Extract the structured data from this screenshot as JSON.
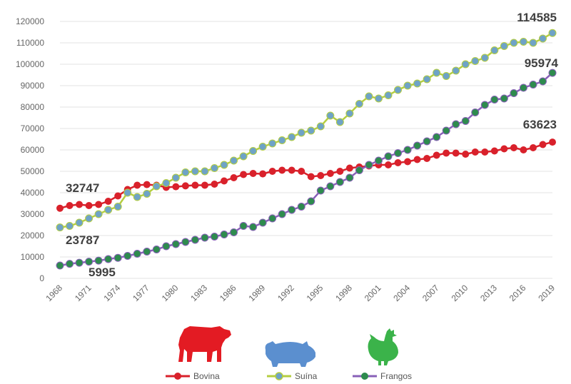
{
  "chart_data": {
    "type": "line",
    "title": "",
    "xlabel": "",
    "ylabel": "",
    "ylim": [
      0,
      120000
    ],
    "yticks": [
      "0",
      "10000",
      "20000",
      "30000",
      "40000",
      "50000",
      "60000",
      "70000",
      "80000",
      "90000",
      "100000",
      "110000",
      "120000"
    ],
    "x": [
      1968,
      1969,
      1970,
      1971,
      1972,
      1973,
      1974,
      1975,
      1976,
      1977,
      1978,
      1979,
      1980,
      1981,
      1982,
      1983,
      1984,
      1985,
      1986,
      1987,
      1988,
      1989,
      1990,
      1991,
      1992,
      1993,
      1994,
      1995,
      1996,
      1997,
      1998,
      1999,
      2000,
      2001,
      2002,
      2003,
      2004,
      2005,
      2006,
      2007,
      2008,
      2009,
      2010,
      2011,
      2012,
      2013,
      2014,
      2015,
      2016,
      2017,
      2018,
      2019
    ],
    "xticks": [
      "1968",
      "1971",
      "1974",
      "1977",
      "1980",
      "1983",
      "1986",
      "1989",
      "1992",
      "1995",
      "1998",
      "2001",
      "2004",
      "2007",
      "2010",
      "2013",
      "2016",
      "2019"
    ],
    "grid": true,
    "legend_position": "bottom",
    "series": [
      {
        "name": "Bovina",
        "color": "#d9212b",
        "icon": "cow-icon",
        "values": [
          32747,
          34000,
          34500,
          34000,
          34500,
          36000,
          38500,
          41500,
          43500,
          43800,
          43500,
          42500,
          42800,
          43200,
          43500,
          43500,
          44000,
          45500,
          47000,
          48500,
          49000,
          48800,
          50000,
          50500,
          50500,
          50000,
          47500,
          48000,
          49000,
          50000,
          51500,
          52000,
          52500,
          53000,
          53000,
          54000,
          54500,
          55500,
          56000,
          57500,
          58500,
          58500,
          58000,
          59000,
          59000,
          59500,
          60500,
          61000,
          60000,
          61000,
          62500,
          63623
        ]
      },
      {
        "name": "Suína",
        "color": "#b5ce3f",
        "marker_color": "#6fa3c6",
        "icon": "pig-icon",
        "values": [
          23787,
          24500,
          26000,
          28000,
          30000,
          32000,
          33500,
          40000,
          38000,
          39500,
          43000,
          44500,
          47000,
          49500,
          50000,
          50000,
          51500,
          53000,
          55000,
          57000,
          59500,
          61500,
          63000,
          64500,
          66000,
          68000,
          69000,
          71000,
          76000,
          73000,
          77000,
          81500,
          85000,
          84000,
          85500,
          88000,
          90000,
          91000,
          93000,
          96000,
          94500,
          97000,
          100000,
          101500,
          103000,
          106500,
          108500,
          110000,
          110500,
          110000,
          112000,
          114585
        ]
      },
      {
        "name": "Frangos",
        "color": "#8860b8",
        "marker_color": "#2e8b4e",
        "icon": "chicken-icon",
        "values": [
          5995,
          6800,
          7300,
          7800,
          8300,
          9000,
          9600,
          10500,
          11500,
          12500,
          13500,
          15000,
          16000,
          17000,
          18000,
          19000,
          19500,
          20500,
          21500,
          24500,
          24000,
          26000,
          28000,
          30000,
          32000,
          33500,
          36000,
          41000,
          43000,
          45000,
          47000,
          50500,
          53000,
          55000,
          57000,
          58500,
          60000,
          62000,
          64000,
          66000,
          69000,
          72000,
          73500,
          77500,
          81000,
          83500,
          84000,
          86500,
          89000,
          90500,
          92000,
          95974
        ]
      }
    ],
    "annotations": [
      {
        "text": "32747"
      },
      {
        "text": "23787"
      },
      {
        "text": "5995"
      },
      {
        "text": "114585"
      },
      {
        "text": "95974"
      },
      {
        "text": "63623"
      }
    ]
  }
}
